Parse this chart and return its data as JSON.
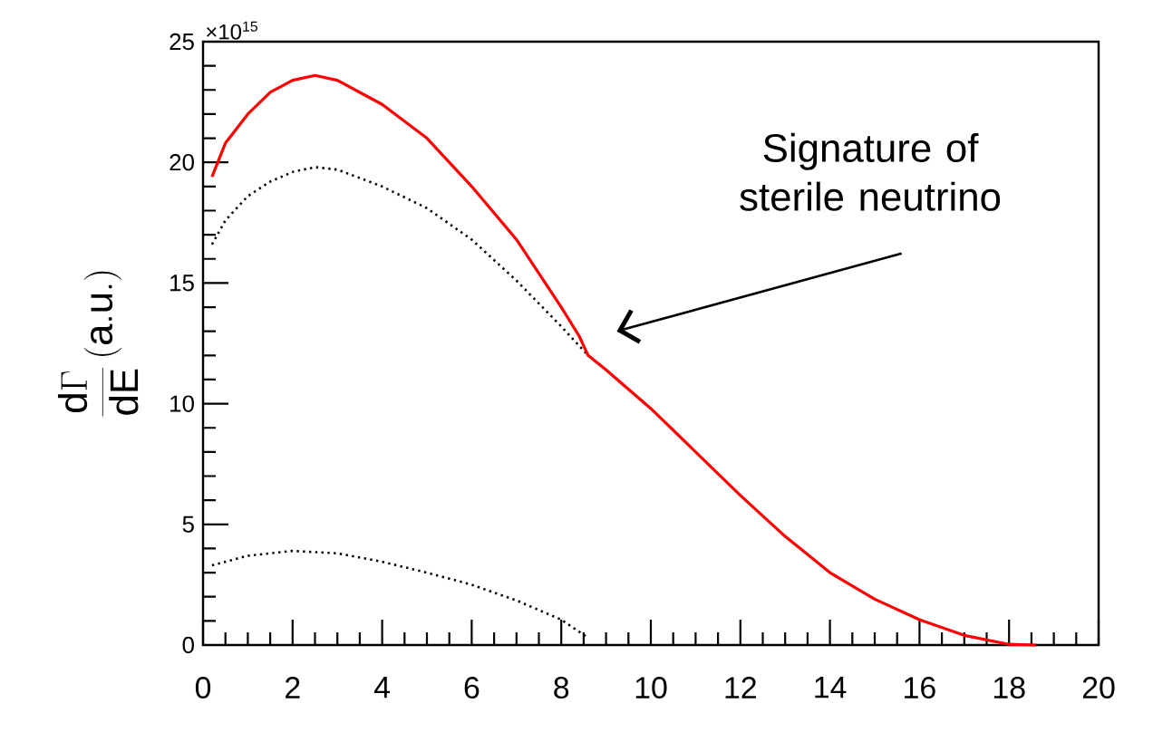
{
  "chart_data": {
    "type": "line",
    "ylabel": "\\frac{\\mathrm{d}\\Gamma}{\\mathrm{dE}}\\,\\mathrm{(a.u.)}",
    "xlim": [
      0,
      20
    ],
    "xticks": [
      0,
      2,
      4,
      6,
      8,
      10,
      12,
      14,
      16,
      18,
      20
    ],
    "ylim": [
      0,
      25
    ],
    "yticks": [
      0,
      5,
      10,
      15,
      20,
      25
    ],
    "grid": false,
    "annotations": [
      "×10$^{15}$",
      "Signature of sterile neutrino"
    ],
    "series": [
      {
        "color": "#000000",
        "line_style": "dotted",
        "x": [
          0.2,
          0.5,
          1,
          1.5,
          2,
          2.5,
          3,
          4,
          5,
          6,
          7,
          8,
          8.6
        ],
        "values": [
          16.6,
          17.6,
          18.6,
          19.2,
          19.6,
          19.8,
          19.7,
          19.0,
          18.1,
          16.8,
          15.1,
          13.2,
          12.0
        ]
      },
      {
        "color": "#000000",
        "line_style": "dotted",
        "x": [
          0.2,
          1,
          2,
          3,
          4,
          5,
          6,
          7,
          8,
          8.6
        ],
        "values": [
          3.3,
          3.7,
          3.9,
          3.8,
          3.45,
          3.0,
          2.5,
          1.85,
          1.05,
          0.3
        ]
      },
      {
        "color": "#ff0000",
        "line_style": "solid",
        "x": [
          0.2,
          0.5,
          1,
          1.5,
          2,
          2.5,
          3,
          4,
          5,
          6,
          7,
          8,
          8.4,
          8.6,
          9,
          10,
          11,
          12,
          13,
          14,
          15,
          16,
          17,
          18,
          18.6
        ],
        "values": [
          19.4,
          20.8,
          22.0,
          22.9,
          23.4,
          23.6,
          23.4,
          22.4,
          21.0,
          19.0,
          16.8,
          14.0,
          12.8,
          12.0,
          11.4,
          9.8,
          8.0,
          6.2,
          4.5,
          3.0,
          1.9,
          1.05,
          0.4,
          0.03,
          0.0
        ]
      }
    ]
  }
}
